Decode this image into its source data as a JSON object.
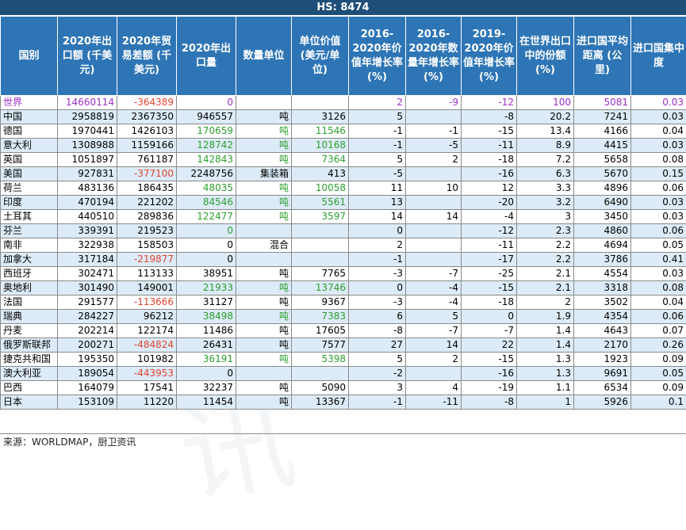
{
  "title": "HS:  8474",
  "headers": [
    "国别",
    "2020年出口额 (千美元)",
    "2020年贸易差额 (千美元)",
    "2020年出口量",
    "数量单位",
    "单位价值 (美元/单位)",
    "2016-2020年价值年增长率 (%)",
    "2016-2020年数量年增长率 (%)",
    "2019-2020年价值年增长率 (%)",
    "在世界出口中的份额 (%)",
    "进口国平均距离 (公里)",
    "进口国集中度"
  ],
  "rows": [
    {
      "country": "世界",
      "export": "14660114",
      "balance": "-364389",
      "qty": "0",
      "unit": "",
      "unit_value": "",
      "v1620": "2",
      "q1620": "-9",
      "v1920": "-12",
      "share": "100",
      "distance": "5081",
      "conc": "0.03",
      "colors": {
        "country": "purple",
        "export": "purple",
        "balance": "red",
        "qty": "purple",
        "unit_value": "purple",
        "v1620": "purple",
        "q1620": "purple",
        "v1920": "purple",
        "share": "purple",
        "distance": "purple",
        "conc": "purple"
      }
    },
    {
      "country": "中国",
      "export": "2958819",
      "balance": "2367350",
      "qty": "946557",
      "unit": "吨",
      "unit_value": "3126",
      "v1620": "5",
      "q1620": "",
      "v1920": "-8",
      "share": "20.2",
      "distance": "7241",
      "conc": "0.03",
      "colors": {}
    },
    {
      "country": "德国",
      "export": "1970441",
      "balance": "1426103",
      "qty": "170659",
      "unit": "吨",
      "unit_value": "11546",
      "v1620": "-1",
      "q1620": "-1",
      "v1920": "-15",
      "share": "13.4",
      "distance": "4166",
      "conc": "0.04",
      "colors": {
        "qty": "green",
        "unit": "green",
        "unit_value": "green"
      }
    },
    {
      "country": "意大利",
      "export": "1308988",
      "balance": "1159166",
      "qty": "128742",
      "unit": "吨",
      "unit_value": "10168",
      "v1620": "-1",
      "q1620": "-5",
      "v1920": "-11",
      "share": "8.9",
      "distance": "4415",
      "conc": "0.03",
      "colors": {
        "qty": "green",
        "unit": "green",
        "unit_value": "green"
      }
    },
    {
      "country": "英国",
      "export": "1051897",
      "balance": "761187",
      "qty": "142843",
      "unit": "吨",
      "unit_value": "7364",
      "v1620": "5",
      "q1620": "2",
      "v1920": "-18",
      "share": "7.2",
      "distance": "5658",
      "conc": "0.08",
      "colors": {
        "qty": "green",
        "unit": "green",
        "unit_value": "green"
      }
    },
    {
      "country": "美国",
      "export": "927831",
      "balance": "-377100",
      "qty": "2248756",
      "unit": "集装箱",
      "unit_value": "413",
      "v1620": "-5",
      "q1620": "",
      "v1920": "-16",
      "share": "6.3",
      "distance": "5670",
      "conc": "0.15",
      "colors": {
        "balance": "red"
      }
    },
    {
      "country": "荷兰",
      "export": "483136",
      "balance": "186435",
      "qty": "48035",
      "unit": "吨",
      "unit_value": "10058",
      "v1620": "11",
      "q1620": "10",
      "v1920": "12",
      "share": "3.3",
      "distance": "4896",
      "conc": "0.06",
      "colors": {
        "qty": "green",
        "unit": "green",
        "unit_value": "green"
      }
    },
    {
      "country": "印度",
      "export": "470194",
      "balance": "221202",
      "qty": "84546",
      "unit": "吨",
      "unit_value": "5561",
      "v1620": "13",
      "q1620": "",
      "v1920": "-20",
      "share": "3.2",
      "distance": "6490",
      "conc": "0.03",
      "colors": {
        "qty": "green",
        "unit": "green",
        "unit_value": "green"
      }
    },
    {
      "country": "土耳其",
      "export": "440510",
      "balance": "289836",
      "qty": "122477",
      "unit": "吨",
      "unit_value": "3597",
      "v1620": "14",
      "q1620": "14",
      "v1920": "-4",
      "share": "3",
      "distance": "3450",
      "conc": "0.03",
      "colors": {
        "qty": "green",
        "unit": "green",
        "unit_value": "green"
      }
    },
    {
      "country": "芬兰",
      "export": "339391",
      "balance": "219523",
      "qty": "0",
      "unit": "",
      "unit_value": "",
      "v1620": "0",
      "q1620": "",
      "v1920": "-12",
      "share": "2.3",
      "distance": "4860",
      "conc": "0.06",
      "colors": {
        "qty": "green"
      }
    },
    {
      "country": "南非",
      "export": "322938",
      "balance": "158503",
      "qty": "0",
      "unit": "混合",
      "unit_value": "",
      "v1620": "2",
      "q1620": "",
      "v1920": "-11",
      "share": "2.2",
      "distance": "4694",
      "conc": "0.05",
      "colors": {}
    },
    {
      "country": "加拿大",
      "export": "317184",
      "balance": "-219877",
      "qty": "0",
      "unit": "",
      "unit_value": "",
      "v1620": "-1",
      "q1620": "",
      "v1920": "-17",
      "share": "2.2",
      "distance": "3786",
      "conc": "0.41",
      "colors": {
        "balance": "red"
      }
    },
    {
      "country": "西班牙",
      "export": "302471",
      "balance": "113133",
      "qty": "38951",
      "unit": "吨",
      "unit_value": "7765",
      "v1620": "-3",
      "q1620": "-7",
      "v1920": "-25",
      "share": "2.1",
      "distance": "4554",
      "conc": "0.03",
      "colors": {}
    },
    {
      "country": "奥地利",
      "export": "301490",
      "balance": "149001",
      "qty": "21933",
      "unit": "吨",
      "unit_value": "13746",
      "v1620": "0",
      "q1620": "-4",
      "v1920": "-15",
      "share": "2.1",
      "distance": "3318",
      "conc": "0.08",
      "colors": {
        "qty": "green",
        "unit": "green",
        "unit_value": "green"
      }
    },
    {
      "country": "法国",
      "export": "291577",
      "balance": "-113666",
      "qty": "31127",
      "unit": "吨",
      "unit_value": "9367",
      "v1620": "-3",
      "q1620": "-4",
      "v1920": "-18",
      "share": "2",
      "distance": "3502",
      "conc": "0.04",
      "colors": {
        "balance": "red"
      }
    },
    {
      "country": "瑞典",
      "export": "284227",
      "balance": "96212",
      "qty": "38498",
      "unit": "吨",
      "unit_value": "7383",
      "v1620": "6",
      "q1620": "5",
      "v1920": "0",
      "share": "1.9",
      "distance": "4354",
      "conc": "0.06",
      "colors": {
        "qty": "green",
        "unit": "green",
        "unit_value": "green"
      }
    },
    {
      "country": "丹麦",
      "export": "202214",
      "balance": "122174",
      "qty": "11486",
      "unit": "吨",
      "unit_value": "17605",
      "v1620": "-8",
      "q1620": "-7",
      "v1920": "-7",
      "share": "1.4",
      "distance": "4643",
      "conc": "0.07",
      "colors": {}
    },
    {
      "country": "俄罗斯联邦",
      "export": "200271",
      "balance": "-484824",
      "qty": "26431",
      "unit": "吨",
      "unit_value": "7577",
      "v1620": "27",
      "q1620": "14",
      "v1920": "22",
      "share": "1.4",
      "distance": "2170",
      "conc": "0.26",
      "colors": {
        "balance": "red"
      }
    },
    {
      "country": "捷克共和国",
      "export": "195350",
      "balance": "101982",
      "qty": "36191",
      "unit": "吨",
      "unit_value": "5398",
      "v1620": "5",
      "q1620": "2",
      "v1920": "-15",
      "share": "1.3",
      "distance": "1923",
      "conc": "0.09",
      "colors": {
        "qty": "green",
        "unit": "green",
        "unit_value": "green"
      }
    },
    {
      "country": "澳大利亚",
      "export": "189054",
      "balance": "-443953",
      "qty": "0",
      "unit": "",
      "unit_value": "",
      "v1620": "-2",
      "q1620": "",
      "v1920": "-16",
      "share": "1.3",
      "distance": "9691",
      "conc": "0.05",
      "colors": {
        "balance": "red"
      }
    },
    {
      "country": "巴西",
      "export": "164079",
      "balance": "17541",
      "qty": "32237",
      "unit": "吨",
      "unit_value": "5090",
      "v1620": "3",
      "q1620": "4",
      "v1920": "-19",
      "share": "1.1",
      "distance": "6534",
      "conc": "0.09",
      "colors": {}
    },
    {
      "country": "日本",
      "export": "153109",
      "balance": "11220",
      "qty": "11454",
      "unit": "吨",
      "unit_value": "13367",
      "v1620": "-1",
      "q1620": "-11",
      "v1920": "-8",
      "share": "1",
      "distance": "5926",
      "conc": "0.1",
      "colors": {}
    }
  ],
  "footer": "来源：WORLDMAP，厨卫资讯",
  "watermark": "厨卫资讯"
}
